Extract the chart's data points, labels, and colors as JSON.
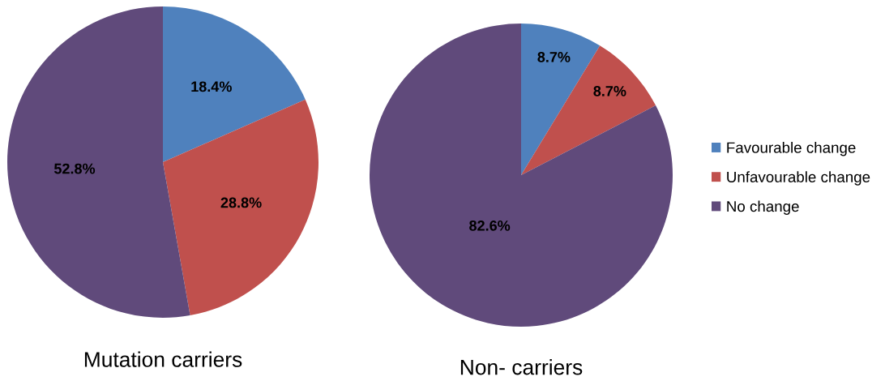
{
  "chart_data": [
    {
      "type": "pie",
      "title": "Mutation carriers",
      "categories": [
        "Favourable change",
        "Unfavourable change",
        "No change"
      ],
      "values": [
        18.4,
        28.8,
        52.8
      ],
      "colors": [
        "#4f81bd",
        "#c0504d",
        "#604a7b"
      ],
      "value_labels": [
        "18.4%",
        "28.8%",
        "52.8%"
      ],
      "legend": "right"
    },
    {
      "type": "pie",
      "title": "Non- carriers",
      "categories": [
        null,
        null,
        null
      ],
      "values": [
        8.7,
        8.7,
        82.6
      ],
      "colors": [
        "#4f81bd",
        "#c0504d",
        "#604a7b"
      ],
      "value_labels": [
        "8.7%",
        "8.7%",
        "82.6%"
      ]
    }
  ]
}
